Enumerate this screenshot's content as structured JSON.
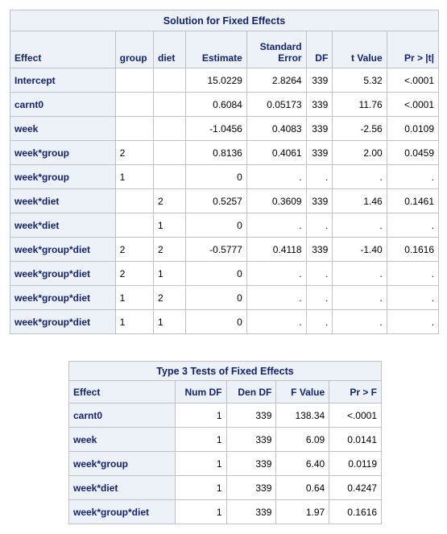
{
  "fixed_effects": {
    "title": "Solution for Fixed Effects",
    "columns": [
      "Effect",
      "group",
      "diet",
      "Estimate",
      "Standard Error",
      "DF",
      "t Value",
      "Pr > |t|"
    ],
    "rows": [
      [
        "Intercept",
        "",
        "",
        "15.0229",
        "2.8264",
        "339",
        "5.32",
        "<.0001"
      ],
      [
        "carnt0",
        "",
        "",
        "0.6084",
        "0.05173",
        "339",
        "11.76",
        "<.0001"
      ],
      [
        "week",
        "",
        "",
        "-1.0456",
        "0.4083",
        "339",
        "-2.56",
        "0.0109"
      ],
      [
        "week*group",
        "2",
        "",
        "0.8136",
        "0.4061",
        "339",
        "2.00",
        "0.0459"
      ],
      [
        "week*group",
        "1",
        "",
        "0",
        ".",
        ".",
        ".",
        "."
      ],
      [
        "week*diet",
        "",
        "2",
        "0.5257",
        "0.3609",
        "339",
        "1.46",
        "0.1461"
      ],
      [
        "week*diet",
        "",
        "1",
        "0",
        ".",
        ".",
        ".",
        "."
      ],
      [
        "week*group*diet",
        "2",
        "2",
        "-0.5777",
        "0.4118",
        "339",
        "-1.40",
        "0.1616"
      ],
      [
        "week*group*diet",
        "2",
        "1",
        "0",
        ".",
        ".",
        ".",
        "."
      ],
      [
        "week*group*diet",
        "1",
        "2",
        "0",
        ".",
        ".",
        ".",
        "."
      ],
      [
        "week*group*diet",
        "1",
        "1",
        "0",
        ".",
        ".",
        ".",
        "."
      ]
    ]
  },
  "type3_tests": {
    "title": "Type 3 Tests of Fixed Effects",
    "columns": [
      "Effect",
      "Num DF",
      "Den DF",
      "F Value",
      "Pr > F"
    ],
    "rows": [
      [
        "carnt0",
        "1",
        "339",
        "138.34",
        "<.0001"
      ],
      [
        "week",
        "1",
        "339",
        "6.09",
        "0.0141"
      ],
      [
        "week*group",
        "1",
        "339",
        "6.40",
        "0.0119"
      ],
      [
        "week*diet",
        "1",
        "339",
        "0.64",
        "0.4247"
      ],
      [
        "week*group*diet",
        "1",
        "339",
        "1.97",
        "0.1616"
      ]
    ]
  },
  "colors": {
    "header_bg": "#edf2f9",
    "header_text": "#112277",
    "border": "#c1c1c1"
  }
}
